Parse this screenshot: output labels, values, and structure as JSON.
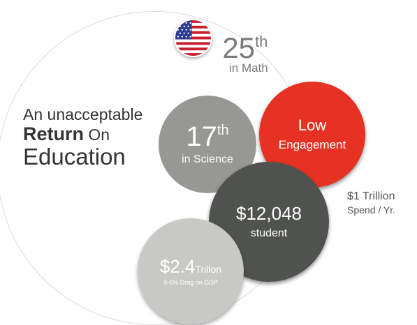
{
  "headline": {
    "line1": "An unacceptable",
    "line2_bold": "Return",
    "line2_rest": "On",
    "line3": "Education"
  },
  "math_rank": {
    "number": "25",
    "suffix": "th",
    "subject": "in Math",
    "flag_icon": "us-flag-icon"
  },
  "science_rank": {
    "number": "17",
    "suffix": "th",
    "subject": "in Science"
  },
  "engagement": {
    "line1": "Low",
    "line2": "Engagement"
  },
  "per_student": {
    "amount": "$12,048",
    "label": "student"
  },
  "gdp": {
    "amount": "$2.4",
    "unit": "Trillon",
    "note": "9-5% Drag on GDP"
  },
  "spend": {
    "line1": "$1 Trillion",
    "line2": "Spend / Yr."
  },
  "colors": {
    "red": "#e53223",
    "dark_gray": "#4f524e",
    "mid_gray": "#979794",
    "light_gray": "#c8c8c4"
  }
}
